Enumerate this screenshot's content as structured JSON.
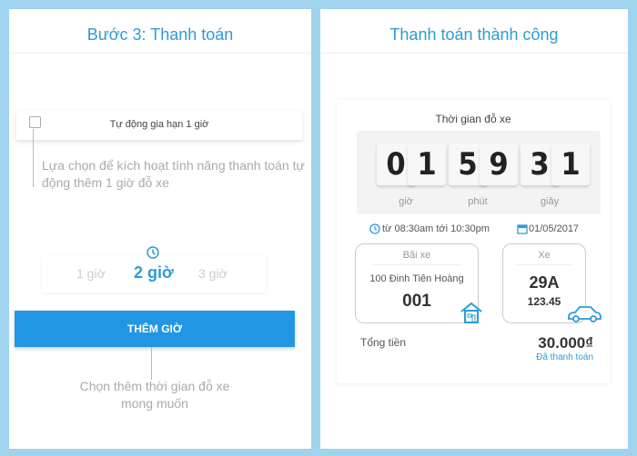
{
  "left": {
    "title": "Bước 3: Thanh toán",
    "auto_renew_label": "Tự động gia hạn 1 giờ",
    "auto_renew_checked": false,
    "auto_renew_hint": "Lựa chọn để kích hoạt tính năng thanh toán tự động thêm 1 giờ đỗ xe",
    "hour_options": [
      "1 giờ",
      "2 giờ",
      "3 giờ"
    ],
    "selected_hour": "2 giờ",
    "add_time_button": "THÊM GIỜ",
    "add_time_hint": "Chọn thêm thời gian đỗ xe mong muốn"
  },
  "right": {
    "title": "Thanh toán thành công",
    "parking_time_label": "Thời gian đỗ xe",
    "timer": {
      "hours": [
        "0",
        "1"
      ],
      "minutes": [
        "5",
        "9"
      ],
      "seconds": [
        "3",
        "1"
      ],
      "hours_label": "giờ",
      "minutes_label": "phút",
      "seconds_label": "giây"
    },
    "time_range": "từ 08:30am tới 10:30pm",
    "date": "01/05/2017",
    "lot": {
      "label": "Bãi xe",
      "address": "100 Đinh Tiên Hoàng",
      "number": "001"
    },
    "vehicle": {
      "label": "Xe",
      "plate_prefix": "29A",
      "plate_number": "123.45"
    },
    "total_label": "Tổng tiền",
    "total_amount": "30.000₫",
    "status": "Đã thanh toán"
  },
  "colors": {
    "accent": "#2d9bd6",
    "button": "#2196e3",
    "background": "#9fd3ee"
  }
}
